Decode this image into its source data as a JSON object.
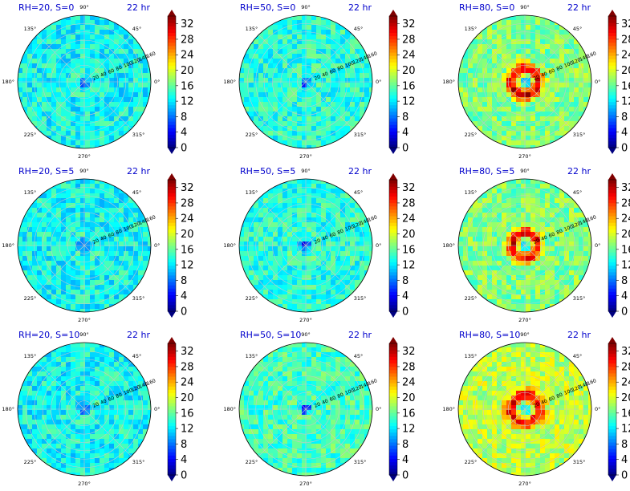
{
  "figure": {
    "time_label": "22 hr"
  },
  "chart_data": {
    "type": "heatmap",
    "projection": "polar",
    "shared": {
      "angle_ticks": [
        "90°",
        "45°",
        "0°",
        "315°",
        "270°",
        "225°",
        "180°",
        "135°"
      ],
      "radius_ticks": [
        "20",
        "40",
        "60",
        "80",
        "100",
        "120",
        "140",
        "160"
      ],
      "radius_range": [
        0,
        160
      ],
      "colorbar_ticks": [
        "0",
        "4",
        "8",
        "12",
        "16",
        "20",
        "24",
        "28",
        "32"
      ],
      "colorbar_range": [
        0,
        34
      ],
      "colormap": "jet",
      "colorbar_extend": "both",
      "grid": true
    },
    "panels": [
      {
        "title": "RH=20, S=0",
        "time": "22 hr",
        "center_min": 6,
        "ring_peak": 14,
        "ring_radius": 30,
        "background": 13,
        "noise": 3,
        "seed": 11
      },
      {
        "title": "RH=50, S=0",
        "time": "22 hr",
        "center_min": 5,
        "ring_peak": 15,
        "ring_radius": 30,
        "background": 14,
        "noise": 3,
        "seed": 23
      },
      {
        "title": "RH=80, S=0",
        "time": "22 hr",
        "center_min": 10,
        "ring_peak": 31,
        "ring_radius": 32,
        "background": 17,
        "noise": 3,
        "seed": 37
      },
      {
        "title": "RH=20, S=5",
        "time": "22 hr",
        "center_min": 6,
        "ring_peak": 14,
        "ring_radius": 30,
        "background": 13,
        "noise": 3,
        "seed": 41
      },
      {
        "title": "RH=50, S=5",
        "time": "22 hr",
        "center_min": 5,
        "ring_peak": 15,
        "ring_radius": 30,
        "background": 14,
        "noise": 3,
        "seed": 53
      },
      {
        "title": "RH=80, S=5",
        "time": "22 hr",
        "center_min": 10,
        "ring_peak": 31,
        "ring_radius": 30,
        "background": 17,
        "noise": 3,
        "seed": 67
      },
      {
        "title": "RH=20, S=10",
        "time": "22 hr",
        "center_min": 6,
        "ring_peak": 14,
        "ring_radius": 30,
        "background": 13,
        "noise": 3,
        "seed": 71
      },
      {
        "title": "RH=50, S=10",
        "time": "22 hr",
        "center_min": 5,
        "ring_peak": 16,
        "ring_radius": 30,
        "background": 15,
        "noise": 3,
        "seed": 83
      },
      {
        "title": "RH=80, S=10",
        "time": "22 hr",
        "center_min": 10,
        "ring_peak": 30,
        "ring_radius": 34,
        "background": 19,
        "noise": 3,
        "seed": 97
      }
    ]
  }
}
